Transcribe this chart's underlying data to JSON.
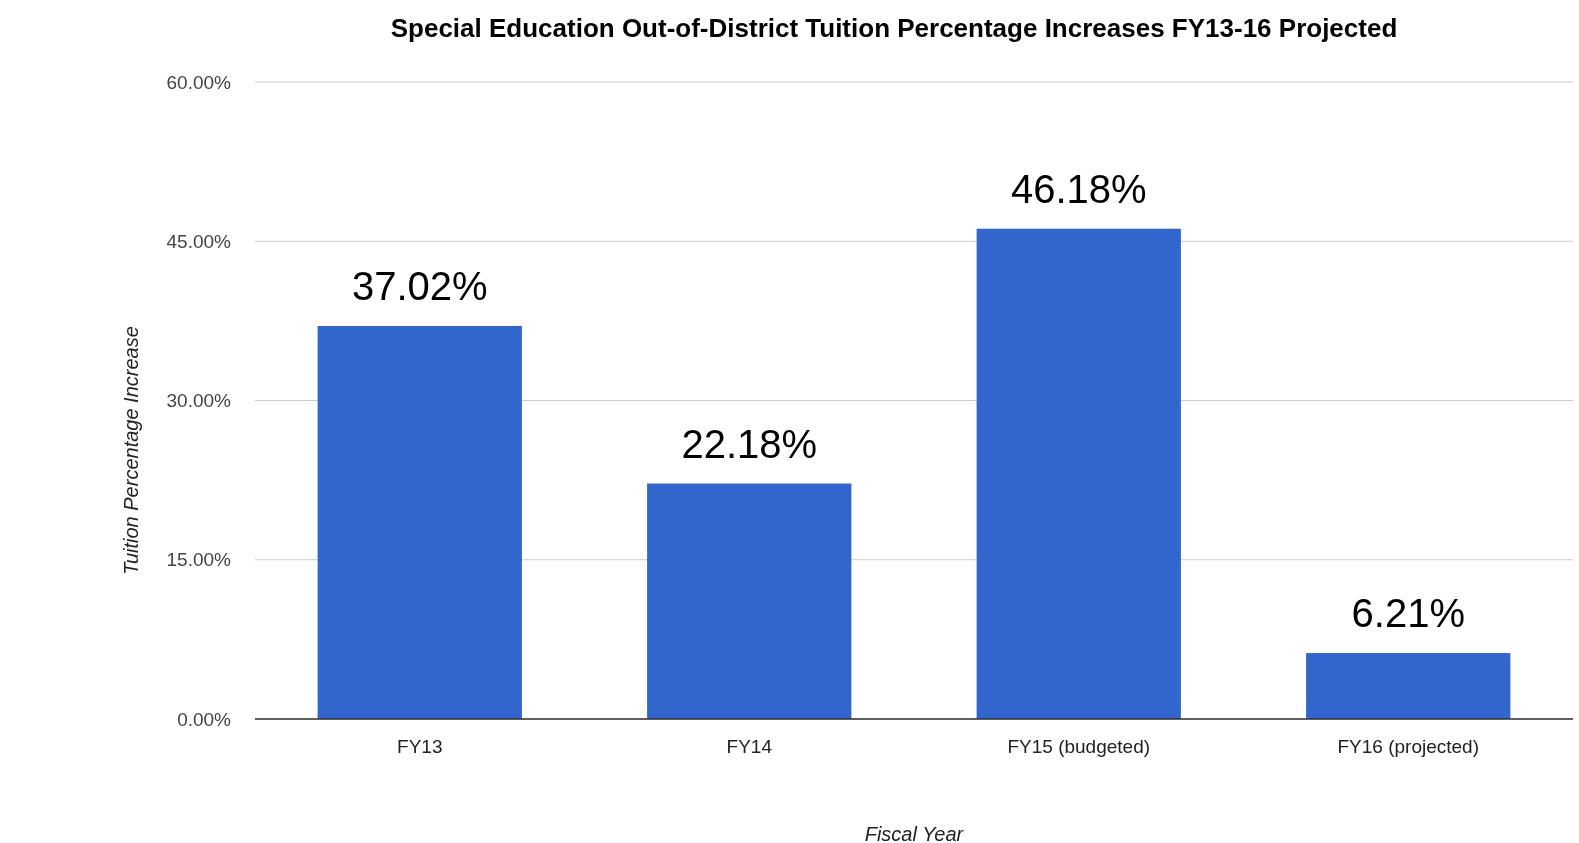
{
  "chart_data": {
    "type": "bar",
    "title": "Special Education Out-of-District Tuition Percentage Increases FY13-16 Projected",
    "xlabel": "Fiscal Year",
    "ylabel": "Tuition Percentage Increase",
    "categories": [
      "FY13",
      "FY14",
      "FY15 (budgeted)",
      "FY16 (projected)"
    ],
    "values": [
      37.02,
      22.18,
      46.18,
      6.21
    ],
    "color": "#3366cc",
    "value_labels": [
      "37.02%",
      "22.18%",
      "46.18%",
      "6.21%"
    ],
    "ylim": [
      0,
      60
    ],
    "yticks": [
      {
        "value": 0,
        "label": "0.00%"
      },
      {
        "value": 15,
        "label": "15.00%"
      },
      {
        "value": 30,
        "label": "30.00%"
      },
      {
        "value": 45,
        "label": "45.00%"
      },
      {
        "value": 60,
        "label": "60.00%"
      }
    ],
    "grid": "y"
  }
}
